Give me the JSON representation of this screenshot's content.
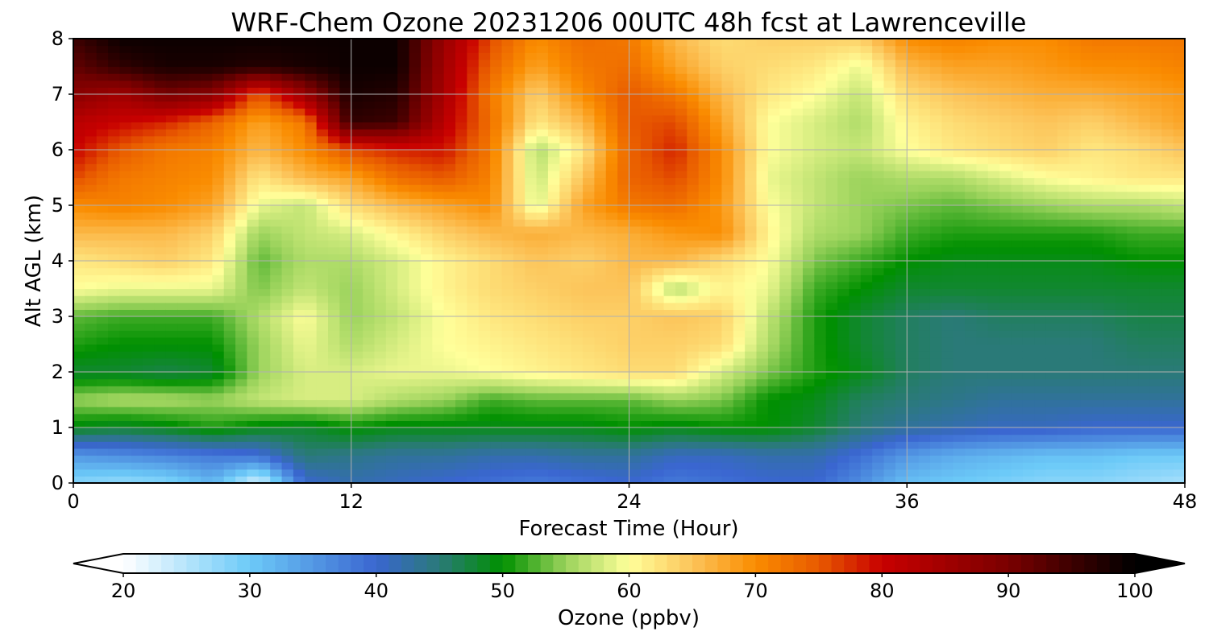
{
  "chart_data": {
    "type": "heatmap",
    "title": "WRF-Chem Ozone  20231206 00UTC 48h fcst at Lawrenceville",
    "xlabel": "Forecast Time (Hour)",
    "ylabel": "Alt AGL (km)",
    "xlim": [
      0,
      48
    ],
    "ylim": [
      0,
      8
    ],
    "xticks": [
      0,
      12,
      24,
      36,
      48
    ],
    "yticks": [
      0,
      1,
      2,
      3,
      4,
      5,
      6,
      7,
      8
    ],
    "grid": true,
    "colorbar": {
      "label": "Ozone  (ppbv)",
      "range": [
        20,
        100
      ],
      "ticks": [
        20,
        30,
        40,
        50,
        60,
        70,
        80,
        90,
        100
      ],
      "extend": "both",
      "orientation": "horizontal",
      "stops": [
        {
          "value": 20,
          "color": "#ffffff"
        },
        {
          "value": 30,
          "color": "#6ccaf8"
        },
        {
          "value": 40,
          "color": "#3a66d0"
        },
        {
          "value": 45,
          "color": "#2a7a78"
        },
        {
          "value": 50,
          "color": "#009000"
        },
        {
          "value": 55,
          "color": "#9bd35c"
        },
        {
          "value": 60,
          "color": "#ffff9a"
        },
        {
          "value": 65,
          "color": "#fcc45a"
        },
        {
          "value": 70,
          "color": "#fa8c00"
        },
        {
          "value": 75,
          "color": "#e85a00"
        },
        {
          "value": 80,
          "color": "#c80000"
        },
        {
          "value": 90,
          "color": "#7a0000"
        },
        {
          "value": 100,
          "color": "#000000"
        }
      ]
    },
    "x": [
      0,
      2,
      4,
      6,
      8,
      10,
      12,
      14,
      16,
      18,
      20,
      22,
      24,
      26,
      28,
      30,
      32,
      34,
      36,
      38,
      40,
      42,
      44,
      46,
      48
    ],
    "y": [
      0,
      0.5,
      1,
      1.5,
      2,
      2.5,
      3,
      3.5,
      4,
      4.5,
      5,
      5.5,
      6,
      6.5,
      7,
      7.5,
      8
    ],
    "z": [
      [
        28,
        27,
        28,
        32,
        22,
        40,
        42,
        41,
        40,
        39,
        38,
        39,
        40,
        38,
        39,
        40,
        40,
        36,
        31,
        30,
        29,
        28,
        28,
        27,
        26
      ],
      [
        35,
        36,
        37,
        38,
        39,
        45,
        44,
        43,
        43,
        42,
        42,
        43,
        43,
        41,
        41,
        42,
        42,
        39,
        35,
        33,
        32,
        31,
        31,
        30,
        30
      ],
      [
        49,
        48,
        49,
        51,
        49,
        48,
        50,
        49,
        49,
        49,
        49,
        49,
        50,
        49,
        50,
        50,
        48,
        45,
        43,
        42,
        41,
        41,
        40,
        40,
        40
      ],
      [
        55,
        56,
        56,
        55,
        57,
        58,
        58,
        56,
        55,
        52,
        53,
        53,
        53,
        55,
        54,
        50,
        49,
        46,
        45,
        44,
        43,
        43,
        43,
        43,
        43
      ],
      [
        48,
        48,
        47,
        48,
        55,
        58,
        58,
        59,
        59,
        60,
        61,
        62,
        63,
        63,
        58,
        54,
        51,
        49,
        46,
        45,
        45,
        45,
        45,
        45,
        45
      ],
      [
        51,
        50,
        50,
        50,
        55,
        59,
        56,
        58,
        60,
        61,
        62,
        63,
        64,
        64,
        63,
        56,
        51,
        48,
        46,
        45,
        45,
        45,
        45,
        46,
        46
      ],
      [
        53,
        52,
        52,
        52,
        56,
        60,
        55,
        57,
        60,
        62,
        63,
        64,
        64,
        65,
        64,
        57,
        51,
        48,
        46,
        45,
        46,
        46,
        46,
        47,
        47
      ],
      [
        60,
        59,
        59,
        59,
        54,
        57,
        55,
        58,
        61,
        63,
        64,
        65,
        65,
        56,
        61,
        59,
        52,
        50,
        48,
        48,
        48,
        48,
        48,
        48,
        48
      ],
      [
        62,
        63,
        64,
        62,
        53,
        56,
        56,
        58,
        61,
        63,
        65,
        64,
        66,
        66,
        63,
        60,
        54,
        52,
        50,
        49,
        49,
        49,
        49,
        50,
        50
      ],
      [
        66,
        66,
        66,
        64,
        55,
        57,
        58,
        61,
        64,
        66,
        67,
        66,
        67,
        69,
        70,
        61,
        56,
        55,
        52,
        51,
        51,
        51,
        51,
        52,
        52
      ],
      [
        70,
        71,
        70,
        68,
        59,
        57,
        63,
        66,
        68,
        70,
        58,
        68,
        72,
        73,
        69,
        60,
        57,
        55,
        54,
        53,
        54,
        55,
        56,
        56,
        57
      ],
      [
        76,
        72,
        71,
        70,
        62,
        66,
        68,
        73,
        75,
        71,
        57,
        65,
        74,
        76,
        70,
        59,
        57,
        55,
        56,
        56,
        58,
        60,
        61,
        62,
        62
      ],
      [
        80,
        75,
        72,
        71,
        66,
        70,
        76,
        78,
        79,
        72,
        56,
        62,
        74,
        78,
        70,
        60,
        58,
        57,
        60,
        62,
        63,
        64,
        62,
        63,
        65
      ],
      [
        82,
        80,
        78,
        74,
        68,
        72,
        96,
        95,
        82,
        73,
        62,
        66,
        75,
        76,
        68,
        60,
        58,
        56,
        61,
        63,
        64,
        65,
        64,
        66,
        68
      ],
      [
        88,
        85,
        90,
        88,
        75,
        86,
        98,
        97,
        84,
        72,
        64,
        70,
        75,
        72,
        66,
        62,
        60,
        57,
        63,
        65,
        66,
        67,
        67,
        68,
        69
      ],
      [
        92,
        96,
        98,
        98,
        97,
        98,
        99,
        99,
        85,
        74,
        68,
        72,
        73,
        68,
        64,
        63,
        62,
        59,
        66,
        68,
        68,
        69,
        70,
        70,
        71
      ],
      [
        95,
        99,
        99,
        99,
        99,
        99,
        99,
        99,
        86,
        76,
        70,
        73,
        72,
        66,
        63,
        64,
        64,
        64,
        70,
        71,
        70,
        70,
        72,
        72,
        72
      ]
    ]
  }
}
